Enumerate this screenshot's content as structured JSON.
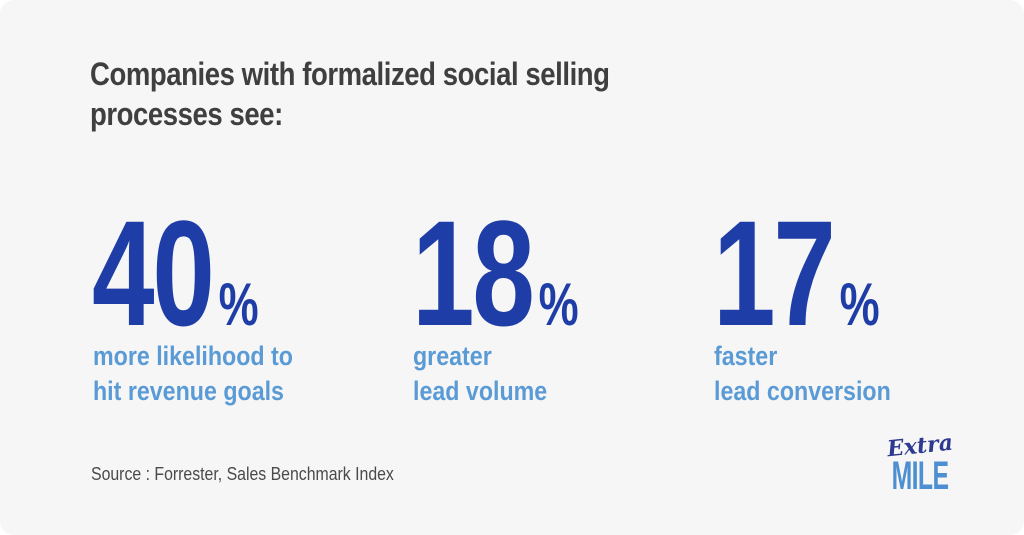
{
  "page": {
    "title_lines": [
      "Companies with formalized social selling",
      "processes see:"
    ],
    "source": "Source : Forrester, Sales Benchmark Index"
  },
  "stats": [
    {
      "value": "40",
      "unit": "%",
      "label_lines": [
        "more likelihood to",
        "hit revenue goals"
      ]
    },
    {
      "value": "18",
      "unit": "%",
      "label_lines": [
        "greater",
        "lead volume"
      ]
    },
    {
      "value": "17",
      "unit": "%",
      "label_lines": [
        "faster",
        "lead conversion"
      ]
    }
  ],
  "logo": {
    "script_text": "Extra",
    "caps_text": "MILE"
  },
  "colors": {
    "background": "#f6f6f6",
    "title_gray": "#3f3f3f",
    "number_blue": "#1e3da6",
    "label_blue": "#5a9bd6",
    "source_gray": "#4a4a4a",
    "logo_navy": "#2d3a8f",
    "logo_light_blue": "#4e8fd1"
  }
}
